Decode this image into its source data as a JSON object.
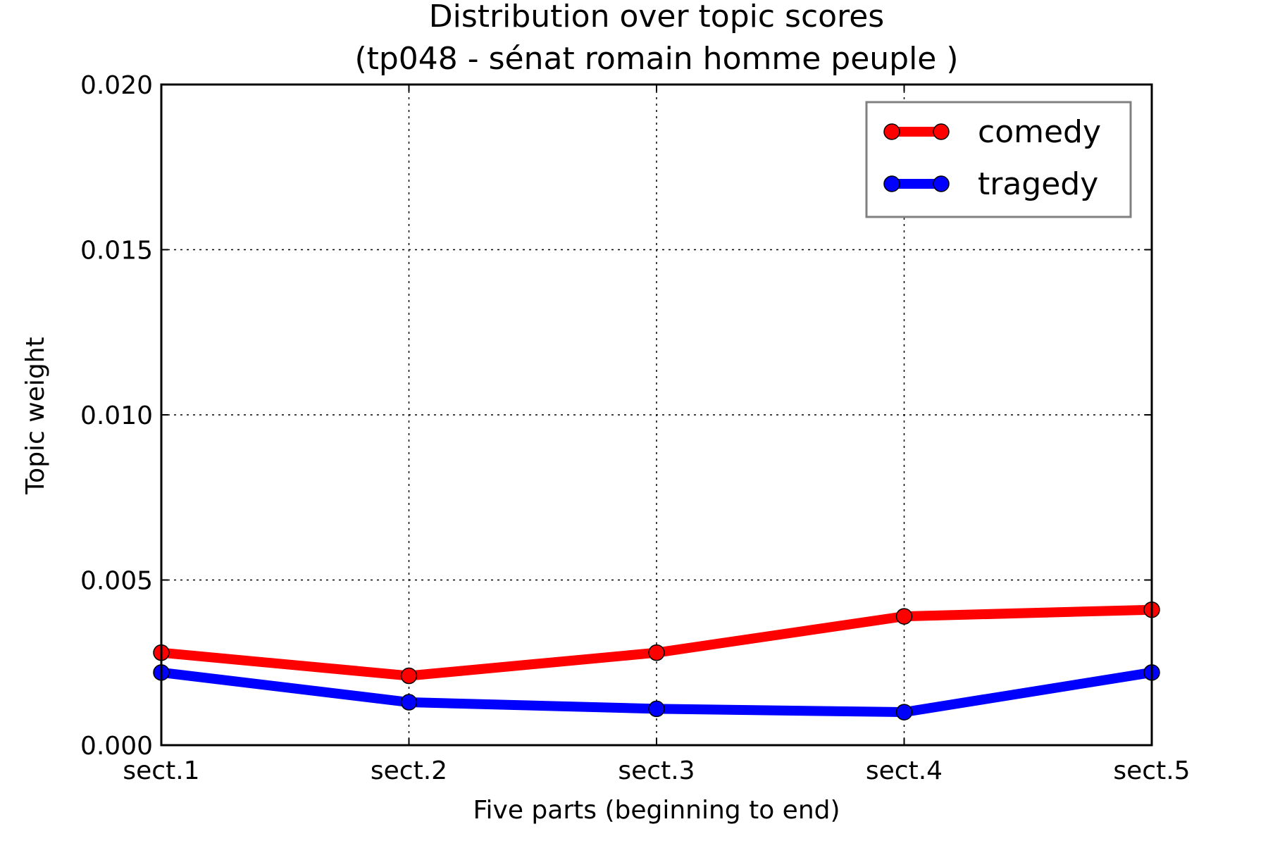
{
  "chart_data": {
    "type": "line",
    "title": "Distribution over topic scores",
    "subtitle": "(tp048 - sénat romain homme peuple )",
    "xlabel": "Five parts (beginning to end)",
    "ylabel": "Topic weight",
    "categories": [
      "sect.1",
      "sect.2",
      "sect.3",
      "sect.4",
      "sect.5"
    ],
    "ylim": [
      0,
      0.02
    ],
    "yticks": [
      0,
      0.005,
      0.01,
      0.015,
      0.02
    ],
    "ytick_labels": [
      "0.000",
      "0.005",
      "0.010",
      "0.015",
      "0.020"
    ],
    "grid": true,
    "legend_position": "top-right",
    "series": [
      {
        "name": "comedy",
        "color": "#ff0000",
        "values": [
          0.0028,
          0.0021,
          0.0028,
          0.0039,
          0.0041
        ]
      },
      {
        "name": "tragedy",
        "color": "#0000ff",
        "values": [
          0.0022,
          0.0013,
          0.0011,
          0.001,
          0.0022
        ]
      }
    ]
  }
}
